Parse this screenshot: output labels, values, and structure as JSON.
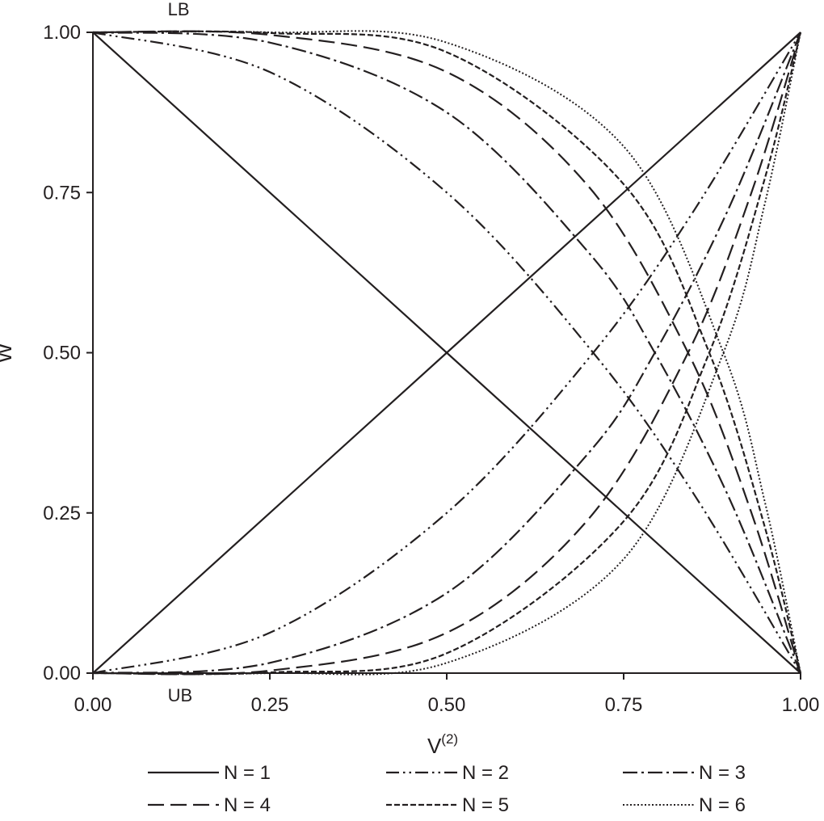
{
  "chart_data": {
    "type": "line",
    "title": "",
    "xlabel": "V",
    "xlabel_superscript": "(2)",
    "ylabel": "W",
    "xlim": [
      0,
      1
    ],
    "ylim": [
      0,
      1
    ],
    "x_ticks": [
      "0.00",
      "0.25",
      "0.50",
      "0.75",
      "1.00"
    ],
    "y_ticks": [
      "0.00",
      "0.25",
      "0.50",
      "0.75",
      "1.00"
    ],
    "grid": false,
    "legend_position": "bottom",
    "annotations": [
      {
        "text": "LB",
        "x": 0.1,
        "y": 1.0
      },
      {
        "text": "UB",
        "x": 0.1,
        "y": 0.0
      }
    ],
    "series": [
      {
        "name": "N = 1",
        "dash": "solid",
        "lb": {
          "x": [
            0.0,
            0.5,
            1.0
          ],
          "y": [
            1.0,
            0.5,
            0.0
          ]
        },
        "ub": {
          "x": [
            0.0,
            0.5,
            1.0
          ],
          "y": [
            0.0,
            0.5,
            1.0
          ]
        }
      },
      {
        "name": "N = 2",
        "dash": "dash-dot-dot",
        "lb": {
          "x": [
            0.0,
            0.25,
            0.5,
            0.707,
            0.85,
            1.0
          ],
          "y": [
            1.0,
            0.938,
            0.75,
            0.5,
            0.278,
            0.0
          ]
        },
        "ub": {
          "x": [
            0.0,
            0.25,
            0.5,
            0.707,
            0.85,
            1.0
          ],
          "y": [
            0.0,
            0.063,
            0.25,
            0.5,
            0.723,
            1.0
          ]
        }
      },
      {
        "name": "N = 3",
        "dash": "dash-dot",
        "lb": {
          "x": [
            0.0,
            0.25,
            0.5,
            0.7,
            0.794,
            0.9,
            1.0
          ],
          "y": [
            1.0,
            0.984,
            0.875,
            0.657,
            0.5,
            0.271,
            0.0
          ]
        },
        "ub": {
          "x": [
            0.0,
            0.25,
            0.5,
            0.7,
            0.794,
            0.9,
            1.0
          ],
          "y": [
            0.0,
            0.016,
            0.125,
            0.343,
            0.5,
            0.729,
            1.0
          ]
        }
      },
      {
        "name": "N = 4",
        "dash": "long-dash",
        "lb": {
          "x": [
            0.0,
            0.25,
            0.5,
            0.7,
            0.841,
            0.93,
            1.0
          ],
          "y": [
            1.0,
            0.996,
            0.938,
            0.76,
            0.5,
            0.252,
            0.0
          ]
        },
        "ub": {
          "x": [
            0.0,
            0.25,
            0.5,
            0.7,
            0.841,
            0.93,
            1.0
          ],
          "y": [
            0.0,
            0.004,
            0.063,
            0.24,
            0.5,
            0.748,
            1.0
          ]
        }
      },
      {
        "name": "N = 5",
        "dash": "short-dash",
        "lb": {
          "x": [
            0.0,
            0.25,
            0.5,
            0.75,
            0.871,
            0.95,
            1.0
          ],
          "y": [
            1.0,
            0.999,
            0.969,
            0.763,
            0.5,
            0.226,
            0.0
          ]
        },
        "ub": {
          "x": [
            0.0,
            0.25,
            0.5,
            0.75,
            0.871,
            0.95,
            1.0
          ],
          "y": [
            0.0,
            0.001,
            0.031,
            0.237,
            0.5,
            0.774,
            1.0
          ]
        }
      },
      {
        "name": "N = 6",
        "dash": "dotted",
        "lb": {
          "x": [
            0.0,
            0.25,
            0.5,
            0.75,
            0.891,
            0.95,
            1.0
          ],
          "y": [
            1.0,
            1.0,
            0.984,
            0.822,
            0.5,
            0.265,
            0.0
          ]
        },
        "ub": {
          "x": [
            0.0,
            0.25,
            0.5,
            0.75,
            0.891,
            0.95,
            1.0
          ],
          "y": [
            0.0,
            0.0,
            0.016,
            0.178,
            0.5,
            0.735,
            1.0
          ]
        }
      }
    ]
  }
}
